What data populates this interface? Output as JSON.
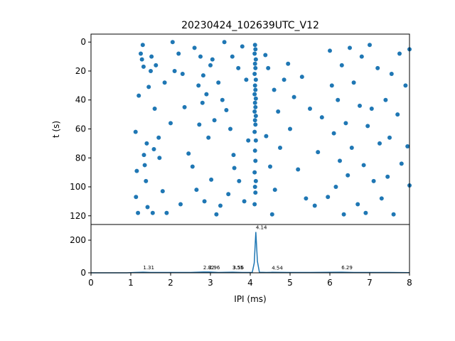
{
  "chart_data": [
    {
      "type": "scatter",
      "title": "20230424_102639UTC_V12",
      "ylabel": "t (s)",
      "color": "#1f77b4",
      "xlim": [
        0,
        8
      ],
      "ylim": [
        126,
        -5.5
      ],
      "yticks": [
        0,
        20,
        40,
        60,
        80,
        100,
        120
      ],
      "x": [
        4.12,
        4.13,
        4.11,
        4.14,
        4.12,
        4.13,
        4.11,
        4.14,
        4.12,
        4.13,
        4.11,
        4.14,
        4.12,
        4.13,
        4.11,
        4.14,
        4.12,
        4.13,
        4.11,
        4.14,
        4.12,
        4.13,
        4.11,
        4.14,
        4.12,
        4.13,
        4.11,
        1.12,
        1.15,
        1.13,
        1.18,
        1.2,
        1.25,
        1.28,
        1.3,
        1.32,
        1.33,
        1.35,
        1.38,
        1.4,
        1.42,
        1.45,
        1.5,
        1.52,
        1.55,
        1.58,
        1.6,
        1.63,
        1.7,
        1.72,
        1.8,
        1.85,
        1.9,
        2.0,
        2.05,
        2.1,
        2.2,
        2.25,
        2.3,
        2.35,
        2.45,
        2.55,
        2.6,
        2.65,
        2.7,
        2.72,
        2.75,
        2.8,
        2.82,
        2.85,
        2.9,
        2.95,
        3.0,
        3.02,
        3.05,
        3.1,
        3.15,
        3.2,
        3.25,
        3.3,
        3.35,
        3.4,
        3.45,
        3.5,
        3.55,
        3.58,
        3.6,
        3.7,
        3.72,
        3.8,
        3.85,
        3.9,
        3.95,
        4.38,
        4.4,
        4.45,
        4.5,
        4.55,
        4.6,
        4.62,
        4.7,
        4.75,
        4.85,
        4.95,
        5.0,
        5.1,
        5.2,
        5.3,
        5.4,
        5.5,
        5.62,
        5.7,
        5.8,
        5.95,
        6.0,
        6.05,
        6.1,
        6.15,
        6.2,
        6.25,
        6.3,
        6.35,
        6.4,
        6.45,
        6.5,
        6.55,
        6.6,
        6.7,
        6.75,
        6.8,
        6.85,
        6.9,
        6.95,
        7.0,
        7.05,
        7.1,
        7.2,
        7.25,
        7.3,
        7.4,
        7.45,
        7.5,
        7.55,
        7.6,
        7.7,
        7.75,
        7.8,
        7.9,
        7.95,
        8.0,
        8.0
      ],
      "y": [
        2,
        5,
        8,
        12,
        15,
        18,
        22,
        26,
        30,
        33,
        36,
        39,
        42,
        45,
        48,
        51,
        54,
        57,
        62,
        68,
        75,
        82,
        90,
        96,
        100,
        104,
        112,
        62,
        89,
        107,
        118,
        37,
        8,
        12,
        2,
        17,
        78,
        85,
        96,
        70,
        114,
        31,
        20,
        10,
        118,
        74,
        46,
        16,
        66,
        80,
        103,
        28,
        118,
        56,
        0,
        20,
        8,
        112,
        22,
        45,
        77,
        86,
        4,
        102,
        30,
        57,
        10,
        42,
        23,
        110,
        36,
        66,
        16,
        95,
        12,
        54,
        119,
        28,
        113,
        40,
        0,
        47,
        105,
        60,
        10,
        78,
        87,
        18,
        96,
        3,
        110,
        26,
        68,
        9,
        65,
        18,
        86,
        119,
        33,
        102,
        48,
        73,
        26,
        15,
        60,
        38,
        88,
        24,
        108,
        46,
        113,
        76,
        52,
        107,
        6,
        30,
        63,
        100,
        40,
        82,
        16,
        119,
        56,
        92,
        4,
        73,
        28,
        112,
        44,
        10,
        85,
        118,
        58,
        2,
        46,
        96,
        18,
        70,
        108,
        40,
        93,
        66,
        22,
        119,
        50,
        8,
        84,
        30,
        72,
        5,
        99
      ]
    },
    {
      "type": "line",
      "xlabel": "IPI (ms)",
      "color": "#1f77b4",
      "xlim": [
        0,
        8
      ],
      "xticks": [
        0,
        1,
        2,
        3,
        4,
        5,
        6,
        7,
        8
      ],
      "ylim": [
        0,
        296
      ],
      "yticks": [
        0,
        200
      ],
      "x": [
        0,
        0.5,
        0.9,
        1.0,
        1.1,
        1.31,
        1.5,
        2.0,
        2.5,
        2.82,
        2.96,
        3.2,
        3.55,
        3.56,
        3.8,
        4.05,
        4.1,
        4.14,
        4.18,
        4.23,
        4.4,
        4.54,
        5.0,
        5.5,
        6.0,
        6.29,
        6.6,
        7.0,
        7.5,
        8.0
      ],
      "values": [
        0,
        0,
        0,
        1,
        2,
        4,
        2,
        2,
        2,
        5,
        5,
        2,
        4,
        4,
        2,
        2,
        60,
        250,
        70,
        3,
        2,
        3,
        2,
        2,
        3,
        4,
        2,
        2,
        2,
        1
      ],
      "annotations": [
        {
          "x": 1.31,
          "y": 4,
          "text": "1.31"
        },
        {
          "x": 2.82,
          "y": 5,
          "text": "2.82"
        },
        {
          "x": 2.96,
          "y": 5,
          "text": "2.96"
        },
        {
          "x": 3.55,
          "y": 4,
          "text": "3.55"
        },
        {
          "x": 3.56,
          "y": 4,
          "text": "3.56"
        },
        {
          "x": 4.14,
          "y": 250,
          "text": "4.14"
        },
        {
          "x": 4.54,
          "y": 3,
          "text": "4.54"
        },
        {
          "x": 6.29,
          "y": 4,
          "text": "6.29"
        }
      ]
    }
  ]
}
